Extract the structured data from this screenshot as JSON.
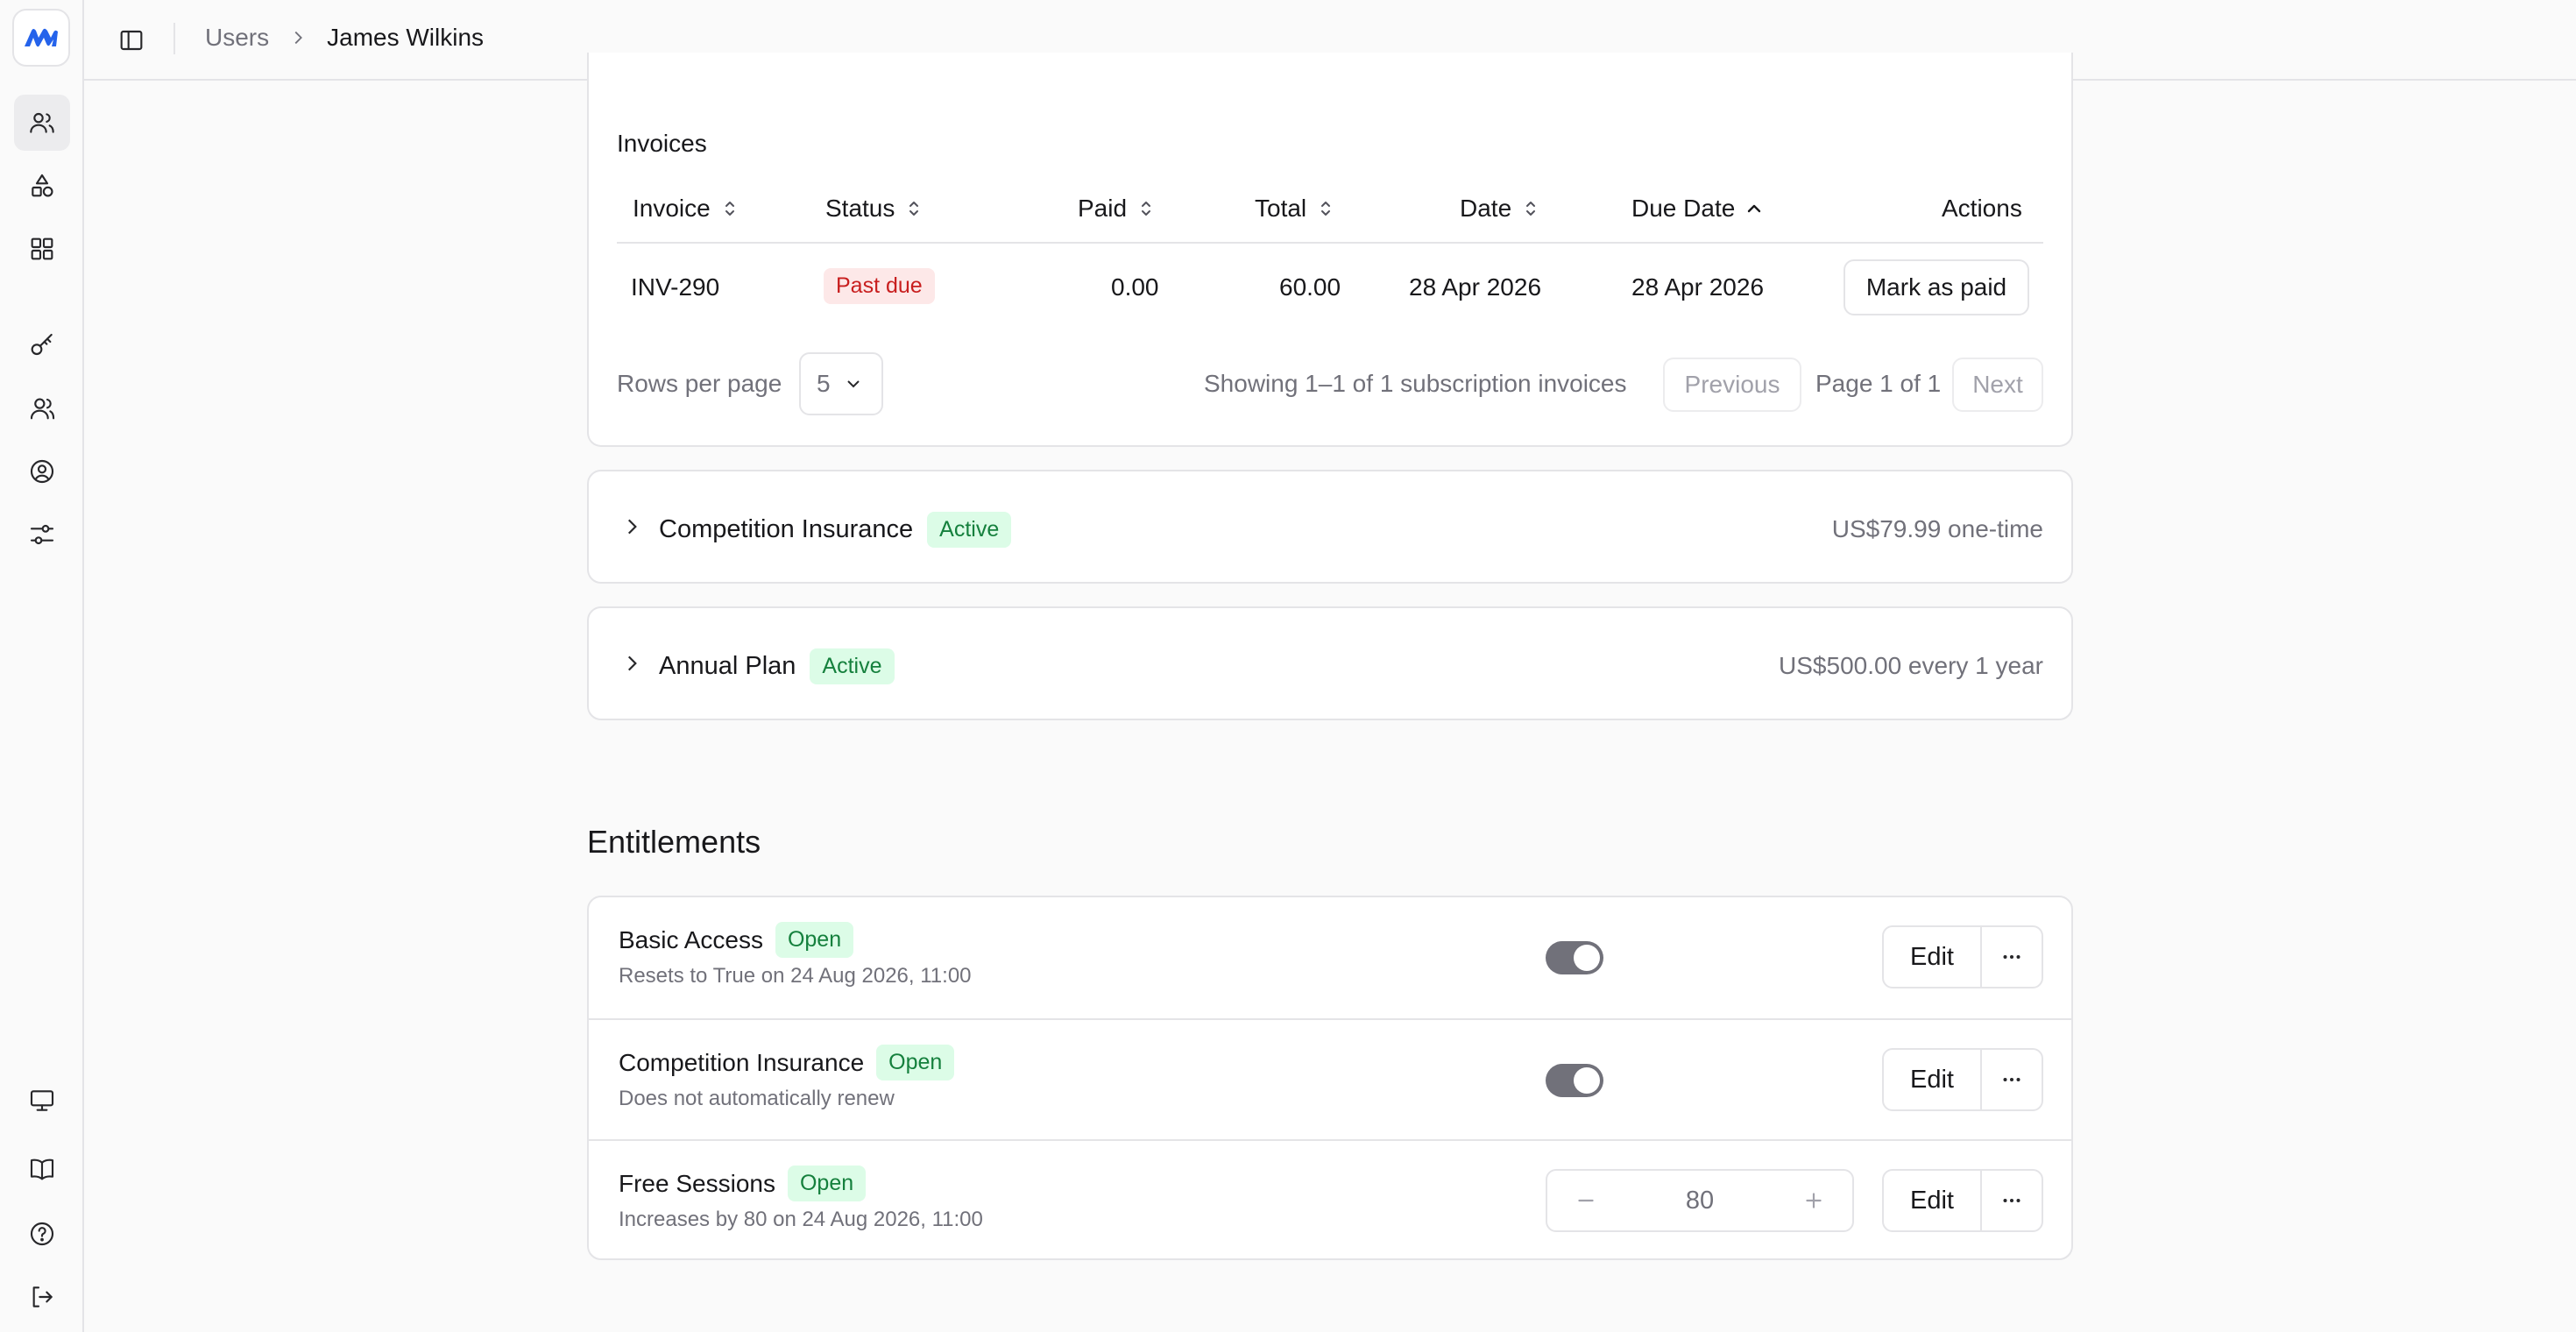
{
  "breadcrumb": {
    "parent": "Users",
    "current": "James Wilkins"
  },
  "invoices": {
    "title": "Invoices",
    "columns": [
      "Invoice",
      "Status",
      "Paid",
      "Total",
      "Date",
      "Due Date",
      "Actions"
    ],
    "rows": [
      {
        "invoice": "INV-290",
        "status": "Past due",
        "paid": "0.00",
        "total": "60.00",
        "date": "28 Apr 2026",
        "due_date": "28 Apr 2026",
        "action": "Mark as paid"
      }
    ],
    "rows_per_page_label": "Rows per page",
    "rows_per_page_value": "5",
    "showing_text": "Showing 1–1 of 1 subscription invoices",
    "previous_label": "Previous",
    "page_text": "Page 1 of 1",
    "next_label": "Next"
  },
  "subscriptions": [
    {
      "name": "Competition Insurance",
      "status": "Active",
      "price": "US$79.99 one-time"
    },
    {
      "name": "Annual Plan",
      "status": "Active",
      "price": "US$500.00 every 1 year"
    }
  ],
  "entitlements": {
    "title": "Entitlements",
    "edit_label": "Edit",
    "items": [
      {
        "name": "Basic Access",
        "status": "Open",
        "subtitle": "Resets to True on 24 Aug 2026, 11:00",
        "control": "toggle",
        "enabled": true
      },
      {
        "name": "Competition Insurance",
        "status": "Open",
        "subtitle": "Does not automatically renew",
        "control": "toggle",
        "enabled": true
      },
      {
        "name": "Free Sessions",
        "status": "Open",
        "subtitle": "Increases by 80 on 24 Aug 2026, 11:00",
        "control": "stepper",
        "value": "80"
      }
    ]
  },
  "icons": {
    "sidebar_top": [
      "users-icon",
      "shapes-icon",
      "grid-icon",
      "key-icon",
      "team-icon",
      "user-circle-icon",
      "sliders-icon"
    ],
    "sidebar_bottom": [
      "monitor-icon",
      "book-icon",
      "help-icon",
      "logout-icon"
    ]
  },
  "colors": {
    "brand": "#2563eb",
    "danger_bg": "#fde8e8",
    "danger_text": "#c81e1e",
    "success_bg": "#dcfce7",
    "success_text": "#15803d"
  }
}
